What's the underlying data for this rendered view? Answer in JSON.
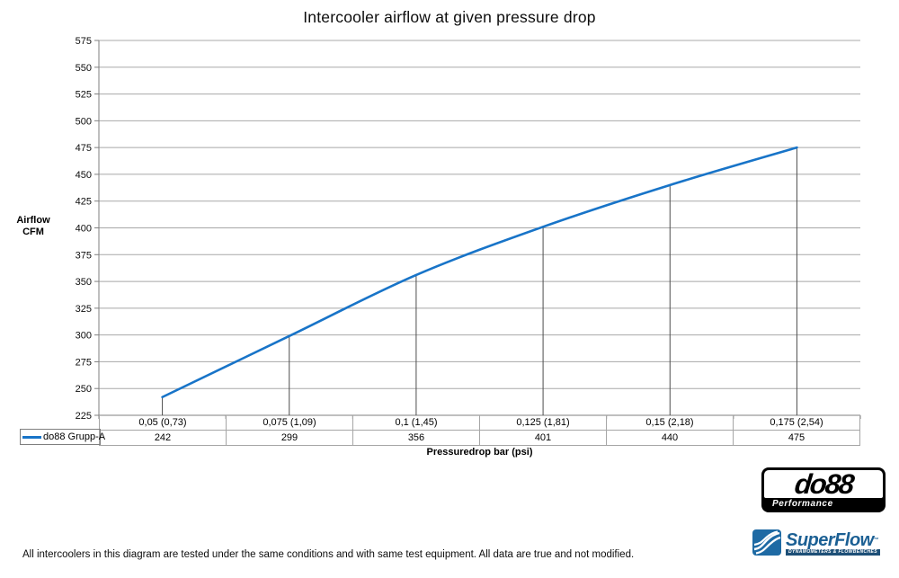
{
  "title": "Intercooler airflow at given pressure drop",
  "chart_data": {
    "type": "line",
    "title": "Intercooler airflow at given pressure drop",
    "categories": [
      "0,05 (0,73)",
      "0,075 (1,09)",
      "0,1 (1,45)",
      "0,125 (1,81)",
      "0,15 (2,18)",
      "0,175 (2,54)"
    ],
    "series": [
      {
        "name": "do88 Grupp-A",
        "values": [
          242,
          299,
          356,
          401,
          440,
          475
        ],
        "color": "#1874c8"
      }
    ],
    "xlabel": "Pressuredrop bar (psi)",
    "ylabel_line1": "Airflow",
    "ylabel_line2": "CFM",
    "ylim": [
      225,
      575
    ],
    "y_step": 25,
    "y_ticks": [
      225,
      250,
      275,
      300,
      325,
      350,
      375,
      400,
      425,
      450,
      475,
      500,
      525,
      550,
      575
    ],
    "grid": "horizontal",
    "smoothed": true,
    "drop_lines": true,
    "legend_position": "bottom-left-table"
  },
  "footer": "All intercoolers in this diagram are tested under the same conditions and with same test equipment. All data are true and not modified.",
  "logos": {
    "do88": {
      "text": "do88",
      "subtext": "Performance"
    },
    "superflow": {
      "text": "SuperFlow",
      "tm": "™",
      "subtext": "DYNAMOMETERS & FLOWBENCHES"
    }
  },
  "colors": {
    "series_blue": "#1874c8",
    "gridline": "#a8a8a8",
    "axis": "#7f7f7f",
    "drop_line": "#4d4d4d",
    "table_border": "#a6a6a6"
  }
}
